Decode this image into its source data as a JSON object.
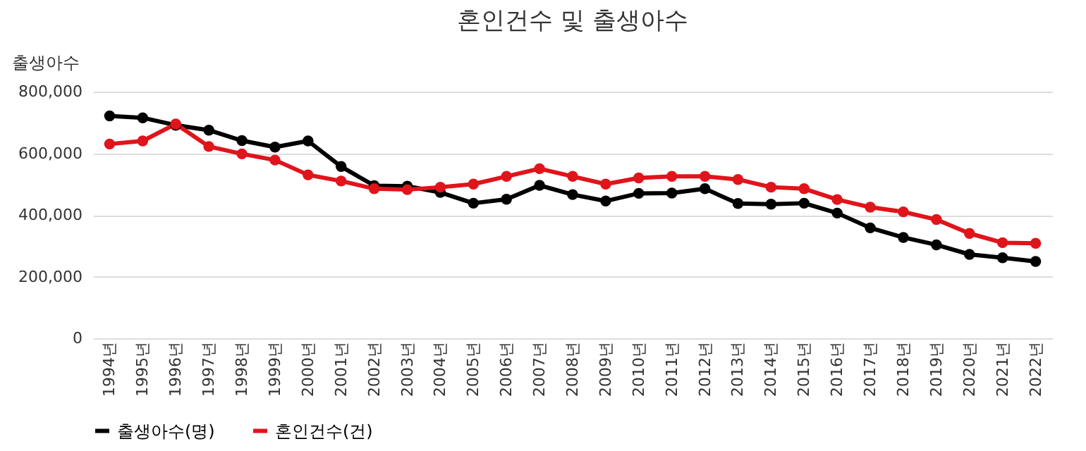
{
  "chart_data": {
    "type": "line",
    "title": "혼인건수 및 출생아수",
    "ylabel": "출생아수",
    "categories": [
      "1994년",
      "1995년",
      "1996년",
      "1997년",
      "1998년",
      "1999년",
      "2000년",
      "2001년",
      "2002년",
      "2003년",
      "2004년",
      "2005년",
      "2006년",
      "2007년",
      "2008년",
      "2009년",
      "2010년",
      "2011년",
      "2012년",
      "2013년",
      "2014년",
      "2015년",
      "2016년",
      "2017년",
      "2018년",
      "2019년",
      "2020년",
      "2021년",
      "2022년"
    ],
    "series": [
      {
        "name": "출생아수(명)",
        "color": "#000000",
        "values": [
          721000,
          715000,
          691000,
          675000,
          641000,
          620000,
          640000,
          557000,
          495000,
          493000,
          473000,
          438000,
          451000,
          496000,
          466000,
          445000,
          470000,
          471000,
          485000,
          437000,
          435000,
          438000,
          406000,
          358000,
          327000,
          303000,
          272000,
          261000,
          249000
        ]
      },
      {
        "name": "혼인건수(건)",
        "color": "#e0141b",
        "values": [
          630000,
          640000,
          695000,
          622000,
          598000,
          578000,
          530000,
          510000,
          485000,
          482000,
          490000,
          500000,
          525000,
          550000,
          525000,
          500000,
          520000,
          525000,
          525000,
          515000,
          490000,
          485000,
          450000,
          425000,
          410000,
          385000,
          340000,
          310000,
          308000
        ]
      }
    ],
    "ylim": [
      0,
      800000
    ],
    "yticks": [
      0,
      {
        "value": 200000,
        "label": "200,000"
      },
      {
        "value": 400000,
        "label": "400,000"
      },
      {
        "value": 600000,
        "label": "600,000"
      },
      {
        "value": 800000,
        "label": "800,000"
      }
    ],
    "grid": "y",
    "legend": "bottom",
    "marker": "circle",
    "line_style": "solid"
  }
}
